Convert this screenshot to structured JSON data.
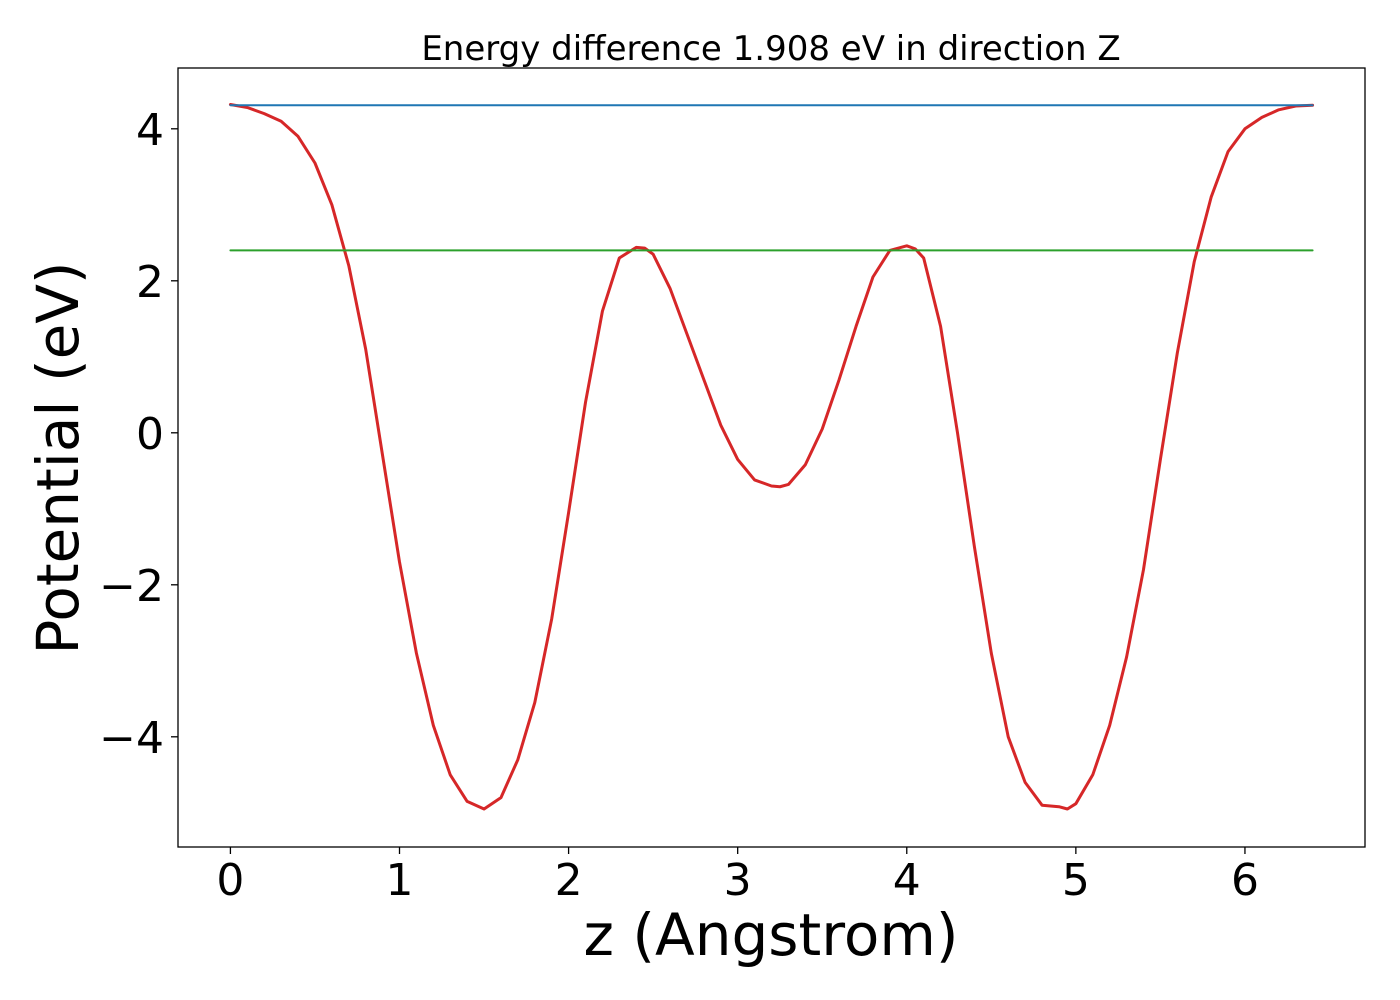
{
  "chart_data": {
    "type": "line",
    "title": "Energy difference 1.908 eV in direction Z",
    "xlabel": "z (Angstrom)",
    "ylabel": "Potential (eV)",
    "xlim": [
      -0.31,
      6.71
    ],
    "ylim": [
      -5.45,
      4.8
    ],
    "xticks": [
      0,
      1,
      2,
      3,
      4,
      5,
      6
    ],
    "xtick_labels": [
      "0",
      "1",
      "2",
      "3",
      "4",
      "5",
      "6"
    ],
    "yticks": [
      -4,
      -2,
      0,
      2,
      4
    ],
    "ytick_labels": [
      "−4",
      "−2",
      "0",
      "2",
      "4"
    ],
    "grid": false,
    "series": [
      {
        "color": "#d62728",
        "style": "curve",
        "x": [
          0,
          0.1,
          0.2,
          0.3,
          0.4,
          0.5,
          0.6,
          0.7,
          0.8,
          0.9,
          1.0,
          1.1,
          1.2,
          1.3,
          1.4,
          1.5,
          1.6,
          1.7,
          1.8,
          1.9,
          2.0,
          2.1,
          2.2,
          2.3,
          2.4,
          2.45,
          2.5,
          2.6,
          2.7,
          2.8,
          2.9,
          3.0,
          3.1,
          3.2,
          3.25,
          3.3,
          3.4,
          3.5,
          3.6,
          3.7,
          3.8,
          3.9,
          4.0,
          4.05,
          4.1,
          4.2,
          4.3,
          4.4,
          4.5,
          4.6,
          4.7,
          4.8,
          4.9,
          4.95,
          5.0,
          5.1,
          5.2,
          5.3,
          5.4,
          5.5,
          5.6,
          5.7,
          5.8,
          5.9,
          6.0,
          6.1,
          6.2,
          6.3,
          6.4
        ],
        "y": [
          4.32,
          4.28,
          4.2,
          4.1,
          3.9,
          3.55,
          3.0,
          2.2,
          1.1,
          -0.3,
          -1.7,
          -2.9,
          -3.85,
          -4.5,
          -4.85,
          -4.95,
          -4.8,
          -4.3,
          -3.55,
          -2.45,
          -1.05,
          0.4,
          1.6,
          2.3,
          2.44,
          2.43,
          2.35,
          1.9,
          1.3,
          0.7,
          0.1,
          -0.35,
          -0.62,
          -0.7,
          -0.71,
          -0.68,
          -0.42,
          0.05,
          0.7,
          1.4,
          2.05,
          2.4,
          2.46,
          2.42,
          2.3,
          1.4,
          0.0,
          -1.5,
          -2.9,
          -4.0,
          -4.6,
          -4.9,
          -4.92,
          -4.95,
          -4.88,
          -4.5,
          -3.85,
          -2.95,
          -1.8,
          -0.35,
          1.05,
          2.25,
          3.1,
          3.7,
          4.0,
          4.15,
          4.25,
          4.3,
          4.31
        ]
      },
      {
        "color": "#1f77b4",
        "style": "hline",
        "x": [
          0,
          6.4
        ],
        "y": [
          4.31,
          4.31
        ]
      },
      {
        "color": "#2ca02c",
        "style": "hline",
        "x": [
          0,
          6.4
        ],
        "y": [
          2.4,
          2.4
        ]
      }
    ]
  },
  "colors": {
    "background": "#ffffff",
    "axes": "#000000"
  }
}
